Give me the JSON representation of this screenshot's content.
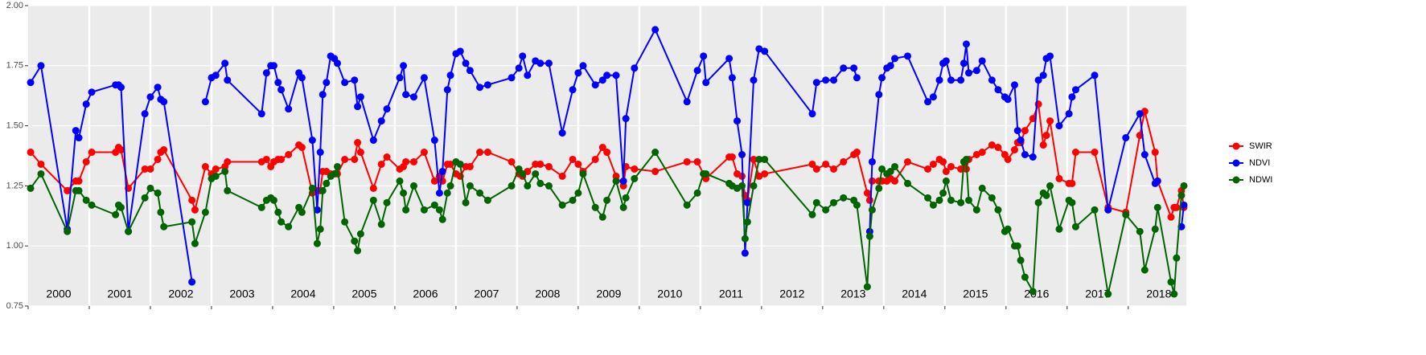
{
  "chart_data": {
    "type": "line",
    "x": [
      2000.04,
      2000.21,
      2000.64,
      2000.78,
      2000.83,
      2000.95,
      2001.04,
      2001.43,
      2001.48,
      2001.52,
      2001.64,
      2001.91,
      2002.0,
      2002.12,
      2002.17,
      2002.22,
      2002.68,
      2002.73,
      2002.9,
      2003.0,
      2003.07,
      2003.22,
      2003.26,
      2003.82,
      2003.9,
      2003.97,
      2004.02,
      2004.09,
      2004.14,
      2004.26,
      2004.43,
      2004.48,
      2004.65,
      2004.73,
      2004.78,
      2004.82,
      2004.88,
      2004.95,
      2005.01,
      2005.06,
      2005.18,
      2005.34,
      2005.39,
      2005.44,
      2005.65,
      2005.78,
      2005.87,
      2006.08,
      2006.14,
      2006.18,
      2006.31,
      2006.48,
      2006.65,
      2006.73,
      2006.78,
      2006.86,
      2006.91,
      2007.0,
      2007.07,
      2007.16,
      2007.23,
      2007.39,
      2007.52,
      2007.91,
      2008.03,
      2008.09,
      2008.17,
      2008.3,
      2008.38,
      2008.52,
      2008.74,
      2008.91,
      2009.0,
      2009.08,
      2009.28,
      2009.4,
      2009.47,
      2009.62,
      2009.74,
      2009.78,
      2009.92,
      2010.26,
      2010.78,
      2010.95,
      2011.05,
      2011.09,
      2011.47,
      2011.52,
      2011.6,
      2011.68,
      2011.73,
      2011.77,
      2011.87,
      2011.96,
      2012.05,
      2012.83,
      2012.9,
      2013.05,
      2013.18,
      2013.34,
      2013.51,
      2013.56,
      2013.73,
      2013.77,
      2013.81,
      2013.92,
      2013.97,
      2014.05,
      2014.11,
      2014.18,
      2014.39,
      2014.72,
      2014.81,
      2014.91,
      2014.97,
      2015.02,
      2015.1,
      2015.26,
      2015.31,
      2015.35,
      2015.39,
      2015.52,
      2015.61,
      2015.77,
      2015.87,
      2015.98,
      2016.03,
      2016.14,
      2016.19,
      2016.24,
      2016.31,
      2016.44,
      2016.53,
      2016.61,
      2016.66,
      2016.72,
      2016.87,
      2017.03,
      2017.08,
      2017.14,
      2017.45,
      2017.67,
      2017.96,
      2018.19,
      2018.27,
      2018.44,
      2018.48,
      2018.7,
      2018.75,
      2018.79,
      2018.87,
      2018.91
    ],
    "series": [
      {
        "name": "SWIR",
        "color": "#ff0000",
        "values": [
          1.39,
          1.34,
          1.23,
          1.27,
          1.27,
          1.35,
          1.39,
          1.39,
          1.41,
          1.4,
          1.24,
          1.32,
          1.32,
          1.36,
          1.39,
          1.4,
          1.19,
          1.15,
          1.33,
          1.3,
          1.32,
          1.33,
          1.35,
          1.35,
          1.36,
          1.33,
          1.35,
          1.36,
          1.36,
          1.38,
          1.42,
          1.41,
          1.22,
          1.23,
          1.23,
          1.31,
          1.31,
          1.3,
          1.3,
          1.3,
          1.36,
          1.36,
          1.43,
          1.39,
          1.24,
          1.34,
          1.37,
          1.32,
          1.33,
          1.35,
          1.35,
          1.39,
          1.27,
          1.29,
          1.27,
          1.34,
          1.34,
          1.3,
          1.29,
          1.33,
          1.33,
          1.39,
          1.39,
          1.35,
          1.3,
          1.29,
          1.31,
          1.34,
          1.34,
          1.33,
          1.29,
          1.36,
          1.34,
          1.31,
          1.36,
          1.41,
          1.39,
          1.29,
          1.25,
          1.33,
          1.32,
          1.31,
          1.35,
          1.35,
          1.3,
          1.28,
          1.37,
          1.37,
          1.3,
          1.29,
          1.21,
          1.19,
          1.36,
          1.29,
          1.3,
          1.34,
          1.32,
          1.34,
          1.32,
          1.35,
          1.38,
          1.39,
          1.22,
          1.19,
          1.27,
          1.27,
          1.27,
          1.27,
          1.28,
          1.27,
          1.35,
          1.32,
          1.34,
          1.36,
          1.35,
          1.31,
          1.33,
          1.32,
          1.35,
          1.32,
          1.36,
          1.38,
          1.39,
          1.42,
          1.41,
          1.38,
          1.36,
          1.4,
          1.43,
          1.43,
          1.48,
          1.53,
          1.59,
          1.42,
          1.46,
          1.52,
          1.28,
          1.26,
          1.26,
          1.39,
          1.39,
          1.16,
          1.14,
          1.46,
          1.56,
          1.39,
          1.27,
          1.12,
          1.16,
          1.16,
          1.23,
          1.16
        ]
      },
      {
        "name": "NDVI",
        "color": "#0000ff",
        "values": [
          1.68,
          1.75,
          1.07,
          1.48,
          1.45,
          1.59,
          1.64,
          1.67,
          1.67,
          1.66,
          1.06,
          1.55,
          1.62,
          1.66,
          1.61,
          1.6,
          0.85,
          null,
          1.6,
          1.7,
          1.71,
          1.76,
          1.69,
          1.55,
          1.72,
          1.75,
          1.75,
          1.68,
          1.65,
          1.57,
          1.72,
          1.7,
          1.44,
          1.15,
          1.39,
          1.63,
          1.68,
          1.79,
          1.78,
          1.76,
          1.68,
          1.69,
          1.58,
          1.62,
          1.44,
          1.52,
          1.57,
          1.7,
          1.75,
          1.63,
          1.62,
          1.7,
          1.44,
          1.22,
          1.31,
          1.65,
          1.71,
          1.8,
          1.81,
          1.76,
          1.73,
          1.66,
          1.67,
          1.7,
          1.74,
          1.79,
          1.71,
          1.77,
          1.76,
          1.76,
          1.47,
          1.65,
          1.72,
          1.75,
          1.67,
          1.69,
          1.71,
          1.71,
          1.27,
          1.53,
          1.74,
          1.9,
          1.6,
          1.73,
          1.79,
          1.68,
          1.78,
          1.7,
          1.52,
          1.38,
          0.97,
          1.18,
          1.69,
          1.82,
          1.81,
          1.55,
          1.68,
          1.69,
          1.69,
          1.74,
          1.74,
          1.7,
          null,
          1.06,
          1.35,
          1.63,
          1.7,
          1.74,
          1.75,
          1.78,
          1.79,
          1.6,
          1.62,
          1.69,
          1.76,
          1.77,
          1.69,
          1.69,
          1.76,
          1.84,
          1.72,
          1.73,
          1.77,
          1.69,
          1.65,
          1.62,
          1.61,
          1.67,
          1.48,
          1.44,
          1.38,
          1.37,
          1.69,
          1.71,
          1.78,
          1.79,
          1.5,
          1.55,
          1.62,
          1.65,
          1.71,
          1.15,
          1.45,
          1.55,
          1.38,
          1.26,
          1.27,
          null,
          null,
          null,
          1.08,
          1.17
        ]
      },
      {
        "name": "NDWI",
        "color": "#006400",
        "values": [
          1.24,
          1.3,
          1.06,
          1.23,
          1.23,
          1.19,
          1.17,
          1.13,
          1.17,
          1.16,
          1.06,
          1.2,
          1.24,
          1.22,
          1.14,
          1.08,
          1.1,
          1.01,
          1.14,
          1.28,
          1.29,
          1.31,
          1.23,
          1.16,
          1.19,
          1.2,
          1.19,
          1.14,
          1.1,
          1.08,
          1.16,
          1.14,
          1.24,
          1.01,
          1.07,
          1.23,
          1.26,
          1.29,
          1.3,
          1.33,
          1.1,
          1.02,
          0.98,
          1.05,
          1.19,
          1.09,
          1.18,
          1.27,
          1.22,
          1.15,
          1.25,
          1.15,
          1.17,
          1.15,
          1.11,
          1.22,
          1.25,
          1.35,
          1.34,
          1.18,
          1.25,
          1.22,
          1.19,
          1.25,
          1.32,
          1.3,
          1.25,
          1.3,
          1.26,
          1.25,
          1.17,
          1.19,
          1.22,
          1.3,
          1.16,
          1.12,
          1.19,
          1.27,
          1.16,
          1.2,
          1.28,
          1.39,
          1.17,
          1.22,
          1.3,
          1.3,
          1.26,
          1.25,
          1.24,
          1.25,
          1.03,
          1.1,
          1.25,
          1.36,
          1.36,
          1.13,
          1.18,
          1.15,
          1.18,
          1.2,
          1.19,
          1.17,
          0.83,
          1.04,
          1.15,
          1.24,
          1.32,
          1.3,
          1.31,
          1.33,
          1.26,
          1.2,
          1.17,
          1.19,
          1.22,
          1.27,
          1.19,
          1.18,
          1.35,
          1.36,
          1.19,
          1.15,
          1.24,
          1.2,
          1.15,
          1.06,
          1.07,
          1.0,
          1.0,
          0.94,
          0.87,
          0.81,
          1.18,
          1.22,
          1.21,
          1.25,
          1.07,
          1.19,
          1.18,
          1.08,
          1.15,
          0.8,
          1.13,
          1.06,
          0.9,
          1.07,
          1.16,
          0.85,
          0.8,
          0.95,
          1.21,
          1.25
        ]
      }
    ],
    "xlim": [
      2000,
      2018.95
    ],
    "xticks": [
      {
        "value": 2000.5,
        "label": "2000"
      },
      {
        "value": 2001.5,
        "label": "2001"
      },
      {
        "value": 2002.5,
        "label": "2002"
      },
      {
        "value": 2003.5,
        "label": "2003"
      },
      {
        "value": 2004.5,
        "label": "2004"
      },
      {
        "value": 2005.5,
        "label": "2005"
      },
      {
        "value": 2006.5,
        "label": "2006"
      },
      {
        "value": 2007.5,
        "label": "2007"
      },
      {
        "value": 2008.5,
        "label": "2008"
      },
      {
        "value": 2009.5,
        "label": "2009"
      },
      {
        "value": 2010.5,
        "label": "2010"
      },
      {
        "value": 2011.5,
        "label": "2011"
      },
      {
        "value": 2012.5,
        "label": "2012"
      },
      {
        "value": 2013.5,
        "label": "2013"
      },
      {
        "value": 2014.5,
        "label": "2014"
      },
      {
        "value": 2015.5,
        "label": "2015"
      },
      {
        "value": 2016.5,
        "label": "2016"
      },
      {
        "value": 2017.5,
        "label": "2017"
      },
      {
        "value": 2018.5,
        "label": "2018"
      }
    ],
    "ylim": [
      0.75,
      2.0
    ],
    "yticks": [
      0.75,
      {
        "value": 1.0,
        "label": "1.00"
      },
      1.25,
      {
        "value": 1.5,
        "label": "1.50"
      },
      1.75,
      {
        "value": 2.0,
        "label": "2.00"
      }
    ],
    "grid": true,
    "legend": "right"
  }
}
